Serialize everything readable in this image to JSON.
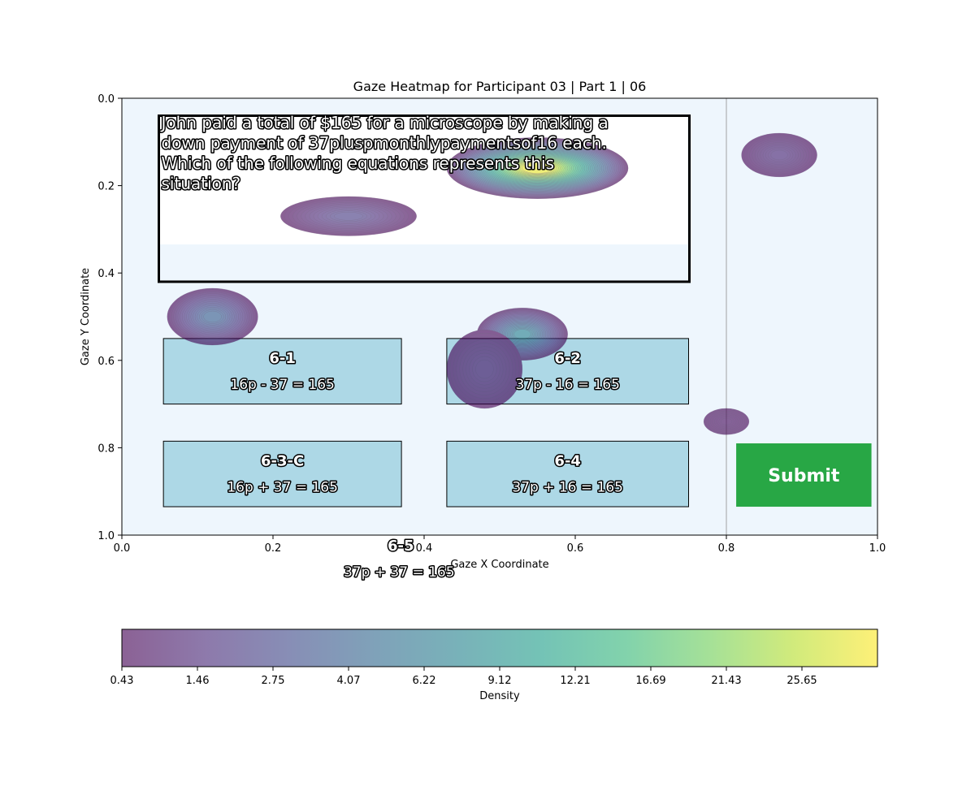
{
  "chart_data": {
    "type": "heatmap",
    "title": "Gaze Heatmap for Participant 03 | Part 1 | 06",
    "xlabel": "Gaze X Coordinate",
    "ylabel": "Gaze Y Coordinate",
    "xlim": [
      0.0,
      1.0
    ],
    "ylim": [
      1.0,
      0.0
    ],
    "y_inverted": true,
    "x_ticks": [
      "0.0",
      "0.2",
      "0.4",
      "0.6",
      "0.8",
      "1.0"
    ],
    "y_ticks": [
      "0.0",
      "0.2",
      "0.4",
      "0.6",
      "0.8",
      "1.0"
    ],
    "background_color": "#eef6fd",
    "vertical_reference_line_x": 0.8,
    "question": {
      "lines": [
        "John paid a total of $165 for a microscope by making a",
        "down payment of 37pluspmonthlypaymentsof16 each.",
        "Which of the following equations represents this",
        "situation?"
      ],
      "box": [
        0.05,
        0.04,
        0.75,
        0.42
      ]
    },
    "options": [
      {
        "id": "6-1",
        "equation": "16p - 37 = 165",
        "box": [
          0.055,
          0.55,
          0.37,
          0.7
        ]
      },
      {
        "id": "6-2",
        "equation": "37p - 16 = 165",
        "box": [
          0.43,
          0.55,
          0.75,
          0.7
        ]
      },
      {
        "id": "6-3-C",
        "equation": "16p + 37 = 165",
        "box": [
          0.055,
          0.785,
          0.37,
          0.935
        ]
      },
      {
        "id": "6-4",
        "equation": "37p + 16 = 165",
        "box": [
          0.43,
          0.785,
          0.75,
          0.935
        ]
      },
      {
        "id": "6-5",
        "equation": "37p + 37 = 165",
        "anchor": [
          0.225,
          1.02
        ]
      }
    ],
    "submit": {
      "label": "Submit",
      "box": [
        0.813,
        0.79,
        0.992,
        0.935
      ],
      "color": "#28a745"
    },
    "density_blobs": [
      {
        "x": 0.55,
        "y": 0.16,
        "sx": 0.12,
        "sy": 0.07,
        "peak": 27.5
      },
      {
        "x": 0.3,
        "y": 0.27,
        "sx": 0.09,
        "sy": 0.045,
        "peak": 5.0
      },
      {
        "x": 0.12,
        "y": 0.5,
        "sx": 0.06,
        "sy": 0.065,
        "peak": 8.5
      },
      {
        "x": 0.53,
        "y": 0.54,
        "sx": 0.06,
        "sy": 0.06,
        "peak": 12.5
      },
      {
        "x": 0.48,
        "y": 0.62,
        "sx": 0.05,
        "sy": 0.09,
        "peak": 2.0
      },
      {
        "x": 0.87,
        "y": 0.13,
        "sx": 0.05,
        "sy": 0.05,
        "peak": 3.0
      },
      {
        "x": 0.8,
        "y": 0.74,
        "sx": 0.03,
        "sy": 0.03,
        "peak": 1.0
      }
    ],
    "colorbar": {
      "label": "Density",
      "tick_labels": [
        "0.43",
        "1.46",
        "2.75",
        "4.07",
        "6.22",
        "9.12",
        "12.21",
        "16.69",
        "21.43",
        "25.65"
      ],
      "colors": [
        "#440154",
        "#482878",
        "#3e4989",
        "#31688e",
        "#26828e",
        "#1f9e89",
        "#35b779",
        "#6ece58",
        "#b5de2b",
        "#fde725"
      ]
    }
  }
}
